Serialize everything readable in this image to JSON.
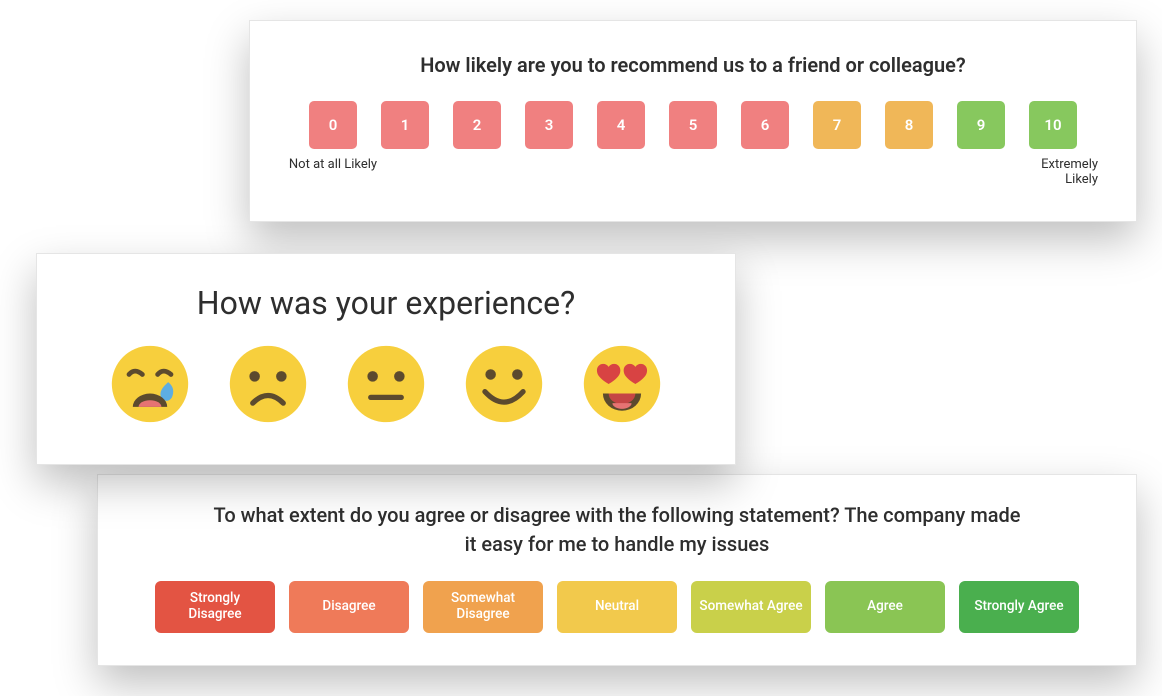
{
  "nps": {
    "title": "How likely are you to recommend us to a friend or colleague?",
    "low_label": "Not at all Likely",
    "high_label": "Extremely Likely",
    "title_fontsize": 20,
    "label_fontsize": 13,
    "button_size": 48,
    "button_radius": 5,
    "items": [
      {
        "label": "0",
        "color": "#f08080"
      },
      {
        "label": "1",
        "color": "#f08080"
      },
      {
        "label": "2",
        "color": "#f08080"
      },
      {
        "label": "3",
        "color": "#f08080"
      },
      {
        "label": "4",
        "color": "#f08080"
      },
      {
        "label": "5",
        "color": "#f08080"
      },
      {
        "label": "6",
        "color": "#f08080"
      },
      {
        "label": "7",
        "color": "#f0b758"
      },
      {
        "label": "8",
        "color": "#f0b758"
      },
      {
        "label": "9",
        "color": "#87c85e"
      },
      {
        "label": "10",
        "color": "#87c85e"
      }
    ]
  },
  "emoji": {
    "title": "How was your experience?",
    "title_fontsize": 32,
    "face_color": "#f7cf3d",
    "face_shadow": "#e5b72a",
    "feature_color": "#5c4a2e",
    "tear_color": "#5dade2",
    "heart_color": "#d84343",
    "mouth_pink": "#c54545",
    "tongue_color": "#e67373",
    "icon_size": 88,
    "items": [
      {
        "name": "face-cry",
        "alt": "Very bad"
      },
      {
        "name": "face-sad",
        "alt": "Bad"
      },
      {
        "name": "face-neutral",
        "alt": "Neutral"
      },
      {
        "name": "face-happy",
        "alt": "Good"
      },
      {
        "name": "face-heart-eyes",
        "alt": "Excellent"
      }
    ]
  },
  "likert": {
    "title": "To what extent do you agree or disagree with the following statement? The company made it easy for me to handle my issues",
    "title_fontsize": 20,
    "button_width": 120,
    "button_height": 52,
    "button_radius": 6,
    "items": [
      {
        "label": "Strongly Disagree",
        "color": "#e35443"
      },
      {
        "label": "Disagree",
        "color": "#ef7a59"
      },
      {
        "label": "Somewhat Disagree",
        "color": "#f0a24e"
      },
      {
        "label": "Neutral",
        "color": "#f2c94c"
      },
      {
        "label": "Somewhat Agree",
        "color": "#c9d04a"
      },
      {
        "label": "Agree",
        "color": "#8ac554"
      },
      {
        "label": "Strongly Agree",
        "color": "#4aaf4e"
      }
    ]
  }
}
